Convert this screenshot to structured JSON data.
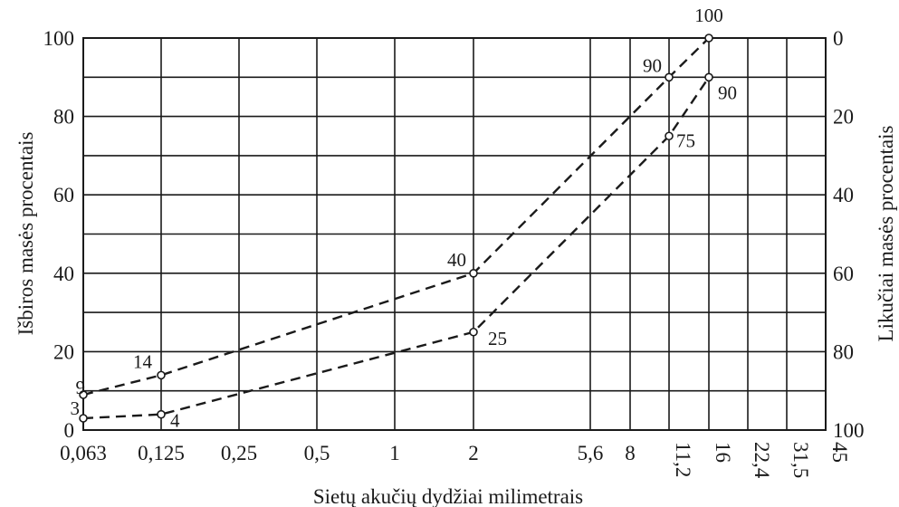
{
  "chart_data": {
    "type": "line",
    "title": "",
    "xlabel": "Sietų akučių dydžiai milimetrais",
    "ylabel": "Išbiros masės procentais",
    "ylabel_right": "Likučiai masės procentais",
    "x_categories": [
      "0,063",
      "0,125",
      "0,25",
      "0,5",
      "1",
      "2",
      "5,6",
      "8",
      "11,2",
      "16",
      "22,4",
      "31,5",
      "45"
    ],
    "x_categories_rotated": [
      "11,2",
      "16",
      "22,4",
      "31,5",
      "45"
    ],
    "ylim": [
      0,
      100
    ],
    "y_ticks": [
      "0",
      "20",
      "40",
      "60",
      "80",
      "100"
    ],
    "y_ticks_right": [
      "100",
      "80",
      "60",
      "40",
      "20",
      "0"
    ],
    "grid": true,
    "series": [
      {
        "points": [
          {
            "x": "0,063",
            "y": 9,
            "label": "9"
          },
          {
            "x": "0,125",
            "y": 14,
            "label": "14"
          },
          {
            "x": "2",
            "y": 40,
            "label": "40"
          },
          {
            "x": "11,2",
            "y": 90,
            "label": "90"
          },
          {
            "x": "16",
            "y": 100,
            "label": "100"
          }
        ]
      },
      {
        "points": [
          {
            "x": "0,063",
            "y": 3,
            "label": "3"
          },
          {
            "x": "0,125",
            "y": 4,
            "label": "4"
          },
          {
            "x": "2",
            "y": 25,
            "label": "25"
          },
          {
            "x": "11,2",
            "y": 75,
            "label": "75"
          },
          {
            "x": "16",
            "y": 90,
            "label": "90"
          }
        ]
      }
    ]
  }
}
